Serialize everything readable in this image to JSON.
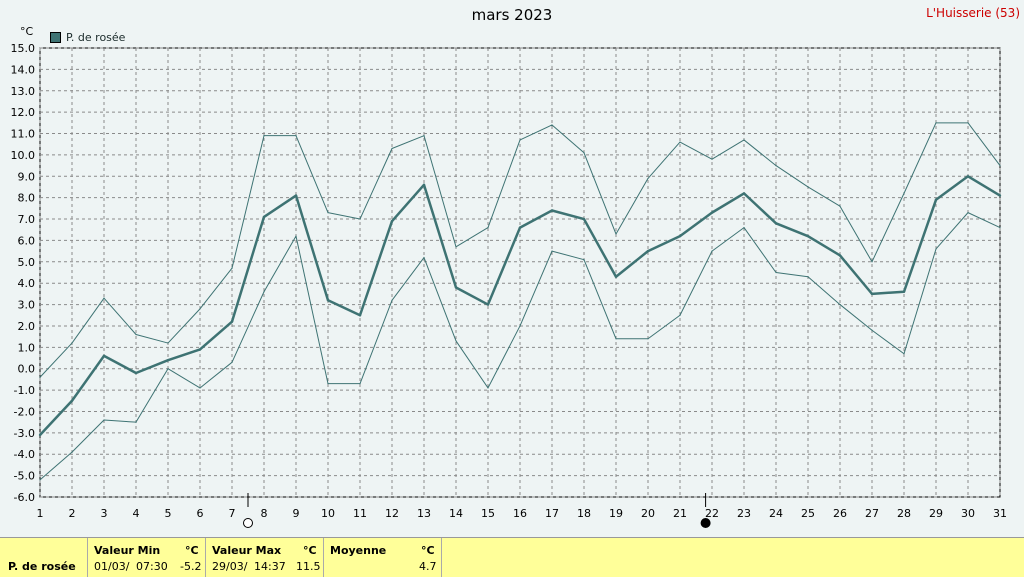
{
  "header": {
    "title": "mars 2023",
    "station": "L'Huisserie (53)",
    "unit": "°C"
  },
  "legend": {
    "label": "P. de rosée",
    "color": "#3e7373"
  },
  "colors": {
    "background": "#eef4f4",
    "grid": "#8a8a8a",
    "series": "#3e7373",
    "station": "#cc0000",
    "stats_bg": "#ffff99"
  },
  "chart_data": {
    "type": "line",
    "x": [
      1,
      2,
      3,
      4,
      5,
      6,
      7,
      8,
      9,
      10,
      11,
      12,
      13,
      14,
      15,
      16,
      17,
      18,
      19,
      20,
      21,
      22,
      23,
      24,
      25,
      26,
      27,
      28,
      29,
      30,
      31
    ],
    "xlim": [
      1,
      31
    ],
    "ylim": [
      -6,
      15
    ],
    "y_ticks": [
      "-6.0",
      "-5.0",
      "-4.0",
      "-3.0",
      "-2.0",
      "-1.0",
      "0.0",
      "1.0",
      "2.0",
      "3.0",
      "4.0",
      "5.0",
      "6.0",
      "7.0",
      "8.0",
      "9.0",
      "10.0",
      "11.0",
      "12.0",
      "13.0",
      "14.0",
      "15.0"
    ],
    "x_ticks": [
      "1",
      "2",
      "3",
      "4",
      "5",
      "6",
      "7",
      "8",
      "9",
      "10",
      "11",
      "12",
      "13",
      "14",
      "15",
      "16",
      "17",
      "18",
      "19",
      "20",
      "21",
      "22",
      "23",
      "24",
      "25",
      "26",
      "27",
      "28",
      "29",
      "30",
      "31"
    ],
    "grid": true,
    "legend_position": "top-left",
    "series": [
      {
        "name": "P. de rosée",
        "role": "avg",
        "values": [
          -3.1,
          -1.5,
          0.6,
          -0.2,
          0.4,
          0.9,
          2.2,
          7.1,
          8.1,
          3.2,
          2.5,
          6.9,
          8.6,
          3.8,
          3.0,
          6.6,
          7.4,
          7.0,
          4.3,
          5.5,
          6.2,
          7.3,
          8.2,
          6.8,
          6.2,
          5.3,
          3.5,
          3.6,
          7.9,
          9.0,
          8.1
        ]
      },
      {
        "role": "max",
        "values": [
          -0.4,
          1.2,
          3.3,
          1.6,
          1.2,
          2.8,
          4.7,
          10.9,
          10.9,
          7.3,
          7.0,
          10.3,
          10.9,
          5.7,
          6.6,
          10.7,
          11.4,
          10.1,
          6.3,
          8.9,
          10.6,
          9.8,
          10.7,
          9.5,
          8.5,
          7.6,
          5.0,
          8.2,
          11.5,
          11.5,
          9.5
        ]
      },
      {
        "role": "min",
        "values": [
          -5.2,
          -3.9,
          -2.4,
          -2.5,
          0.0,
          -0.9,
          0.3,
          3.6,
          6.2,
          -0.7,
          -0.7,
          3.2,
          5.2,
          1.3,
          -0.9,
          2.0,
          5.5,
          5.1,
          1.4,
          1.4,
          2.5,
          5.5,
          6.6,
          4.5,
          4.3,
          3.0,
          1.8,
          0.7,
          5.6,
          7.3,
          6.6
        ]
      }
    ],
    "markers": [
      {
        "type": "moon-empty-icon",
        "x": 7.5
      },
      {
        "type": "moon-full-icon",
        "x": 21.8
      }
    ]
  },
  "stats": {
    "row_label": "P. de rosée",
    "min": {
      "label": "Valeur Min",
      "unit": "°C",
      "date": "01/03/",
      "time": "07:30",
      "value": "-5.2"
    },
    "max": {
      "label": "Valeur Max",
      "unit": "°C",
      "date": "29/03/",
      "time": "14:37",
      "value": "11.5"
    },
    "avg": {
      "label": "Moyenne",
      "unit": "°C",
      "value": "4.7"
    }
  }
}
